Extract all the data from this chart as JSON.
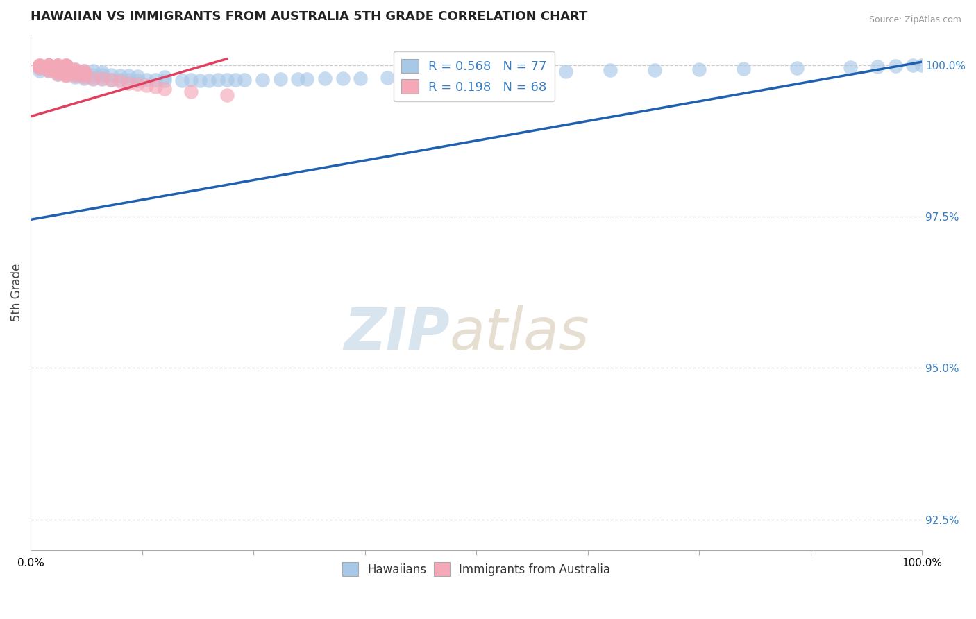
{
  "title": "HAWAIIAN VS IMMIGRANTS FROM AUSTRALIA 5TH GRADE CORRELATION CHART",
  "source_text": "Source: ZipAtlas.com",
  "ylabel": "5th Grade",
  "R_hawaiian": 0.568,
  "N_hawaiian": 77,
  "R_australia": 0.198,
  "N_australia": 68,
  "hawaiian_color": "#a8c8e8",
  "australia_color": "#f4a8b8",
  "hawaiian_line_color": "#2060b0",
  "australia_line_color": "#e04060",
  "background_color": "#ffffff",
  "xlim": [
    0.0,
    1.0
  ],
  "ylim": [
    0.92,
    1.005
  ],
  "yticks": [
    0.925,
    0.95,
    0.975,
    1.0
  ],
  "ytick_labels": [
    "92.5%",
    "95.0%",
    "97.5%",
    "100.0%"
  ],
  "xticks": [
    0.0,
    0.125,
    0.25,
    0.375,
    0.5,
    0.625,
    0.75,
    0.875,
    1.0
  ],
  "hawaiian_line_x": [
    0.0,
    1.0
  ],
  "hawaiian_line_y": [
    0.9745,
    1.0005
  ],
  "australia_line_x": [
    0.0,
    0.22
  ],
  "australia_line_y": [
    0.9915,
    1.001
  ],
  "hawaiian_x": [
    0.01,
    0.01,
    0.01,
    0.02,
    0.02,
    0.02,
    0.02,
    0.02,
    0.02,
    0.02,
    0.03,
    0.03,
    0.03,
    0.03,
    0.04,
    0.04,
    0.04,
    0.04,
    0.05,
    0.05,
    0.05,
    0.06,
    0.06,
    0.06,
    0.07,
    0.07,
    0.07,
    0.08,
    0.08,
    0.08,
    0.09,
    0.09,
    0.1,
    0.1,
    0.11,
    0.11,
    0.12,
    0.12,
    0.13,
    0.14,
    0.15,
    0.15,
    0.17,
    0.18,
    0.19,
    0.2,
    0.21,
    0.22,
    0.23,
    0.24,
    0.26,
    0.28,
    0.3,
    0.31,
    0.33,
    0.35,
    0.37,
    0.4,
    0.43,
    0.44,
    0.46,
    0.48,
    0.5,
    0.52,
    0.55,
    0.58,
    0.6,
    0.65,
    0.7,
    0.75,
    0.8,
    0.86,
    0.92,
    0.95,
    0.97,
    0.99,
    1.0
  ],
  "hawaiian_y": [
    0.999,
    0.9995,
    0.9998,
    0.999,
    0.9993,
    0.9995,
    0.9997,
    0.9998,
    0.9999,
    1.0,
    0.9985,
    0.999,
    0.9993,
    0.9997,
    0.9985,
    0.999,
    0.9993,
    0.9997,
    0.998,
    0.9985,
    0.9993,
    0.9978,
    0.9984,
    0.999,
    0.9977,
    0.9983,
    0.999,
    0.9977,
    0.9983,
    0.9988,
    0.9975,
    0.9983,
    0.9975,
    0.9982,
    0.9975,
    0.9982,
    0.9974,
    0.9981,
    0.9975,
    0.9976,
    0.9974,
    0.998,
    0.9974,
    0.9975,
    0.9974,
    0.9974,
    0.9975,
    0.9976,
    0.9975,
    0.9976,
    0.9976,
    0.9977,
    0.9977,
    0.9977,
    0.9978,
    0.9978,
    0.9978,
    0.9979,
    0.998,
    0.9981,
    0.9982,
    0.9983,
    0.9984,
    0.9985,
    0.9987,
    0.9988,
    0.9989,
    0.9991,
    0.9992,
    0.9993,
    0.9994,
    0.9995,
    0.9996,
    0.9997,
    0.9998,
    0.9999,
    1.0
  ],
  "australia_x": [
    0.01,
    0.01,
    0.01,
    0.01,
    0.01,
    0.01,
    0.02,
    0.02,
    0.02,
    0.02,
    0.02,
    0.02,
    0.02,
    0.02,
    0.02,
    0.02,
    0.02,
    0.02,
    0.02,
    0.02,
    0.03,
    0.03,
    0.03,
    0.03,
    0.03,
    0.03,
    0.03,
    0.03,
    0.03,
    0.03,
    0.03,
    0.04,
    0.04,
    0.04,
    0.04,
    0.04,
    0.04,
    0.04,
    0.04,
    0.04,
    0.04,
    0.04,
    0.04,
    0.04,
    0.04,
    0.04,
    0.05,
    0.05,
    0.05,
    0.05,
    0.05,
    0.05,
    0.06,
    0.06,
    0.06,
    0.06,
    0.06,
    0.07,
    0.08,
    0.09,
    0.1,
    0.11,
    0.12,
    0.13,
    0.14,
    0.15,
    0.18,
    0.22
  ],
  "australia_y": [
    0.9995,
    0.9997,
    0.9998,
    0.9999,
    1.0,
    1.0,
    0.999,
    0.9993,
    0.9995,
    0.9997,
    0.9998,
    0.9999,
    0.9999,
    1.0,
    1.0,
    1.0,
    1.0,
    1.0,
    1.0,
    1.0,
    0.9985,
    0.9988,
    0.999,
    0.9992,
    0.9994,
    0.9996,
    0.9997,
    0.9998,
    0.9999,
    1.0,
    1.0,
    0.9982,
    0.9984,
    0.9986,
    0.9988,
    0.999,
    0.9992,
    0.9993,
    0.9994,
    0.9995,
    0.9996,
    0.9997,
    0.9998,
    0.9999,
    0.9999,
    1.0,
    0.9982,
    0.9985,
    0.9988,
    0.999,
    0.9992,
    0.9993,
    0.998,
    0.9983,
    0.9986,
    0.9988,
    0.999,
    0.9978,
    0.9978,
    0.9976,
    0.9973,
    0.997,
    0.9968,
    0.9966,
    0.9964,
    0.9961,
    0.9956,
    0.995
  ]
}
